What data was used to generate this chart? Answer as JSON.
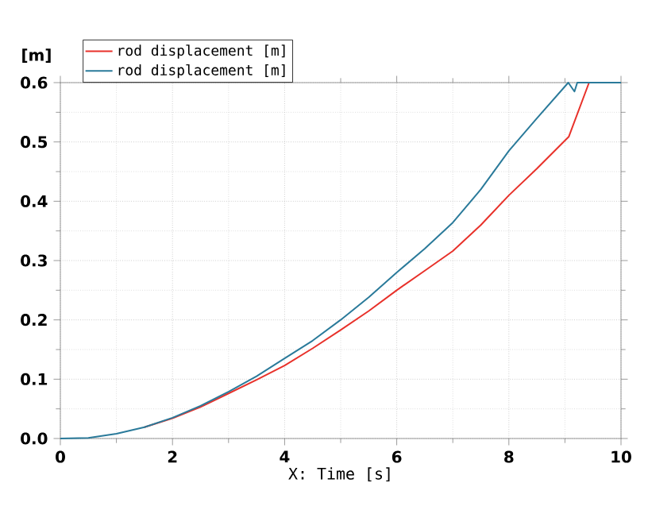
{
  "chart_data": {
    "type": "line",
    "xlabel": "X: Time [s]",
    "ylabel": "[m]",
    "xlim": [
      0,
      10
    ],
    "ylim": [
      0,
      0.6
    ],
    "xticks": [
      0,
      2,
      4,
      6,
      8,
      10
    ],
    "yticks": [
      {
        "value": 0,
        "label": "0.0"
      },
      {
        "value": 0.1,
        "label": "0.1"
      },
      {
        "value": 0.2,
        "label": "0.2"
      },
      {
        "value": 0.3,
        "label": "0.3"
      },
      {
        "value": 0.4,
        "label": "0.4"
      },
      {
        "value": 0.5,
        "label": "0.5"
      },
      {
        "value": 0.6,
        "label": "0.6"
      }
    ],
    "grid": true,
    "legend": "top left",
    "marker": "none",
    "line_style": "solid",
    "series": [
      {
        "name": "rod displacement [m]",
        "color": "#e8312a",
        "x": [
          1.5,
          2,
          2.5,
          3,
          3.5,
          4,
          4.5,
          5,
          5.5,
          6,
          6.5,
          7,
          7.5,
          8,
          8.5,
          9.07,
          9.43
        ],
        "values": [
          0.019,
          0.034,
          0.053,
          0.076,
          0.099,
          0.123,
          0.152,
          0.183,
          0.215,
          0.25,
          0.283,
          0.316,
          0.36,
          0.41,
          0.455,
          0.509,
          0.6
        ]
      },
      {
        "name": "rod displacement [m]",
        "color": "#2a7a9a",
        "x": [
          0,
          0.5,
          1,
          1.5,
          2,
          2.5,
          3,
          3.5,
          4,
          4.5,
          5,
          5.5,
          6,
          6.5,
          7,
          7.5,
          8,
          8.5,
          9.06,
          9.17,
          9.22,
          10
        ],
        "values": [
          0,
          0.001,
          0.008,
          0.019,
          0.035,
          0.055,
          0.079,
          0.105,
          0.135,
          0.165,
          0.2,
          0.238,
          0.28,
          0.32,
          0.364,
          0.42,
          0.485,
          0.54,
          0.6,
          0.585,
          0.6,
          0.6
        ]
      }
    ]
  }
}
